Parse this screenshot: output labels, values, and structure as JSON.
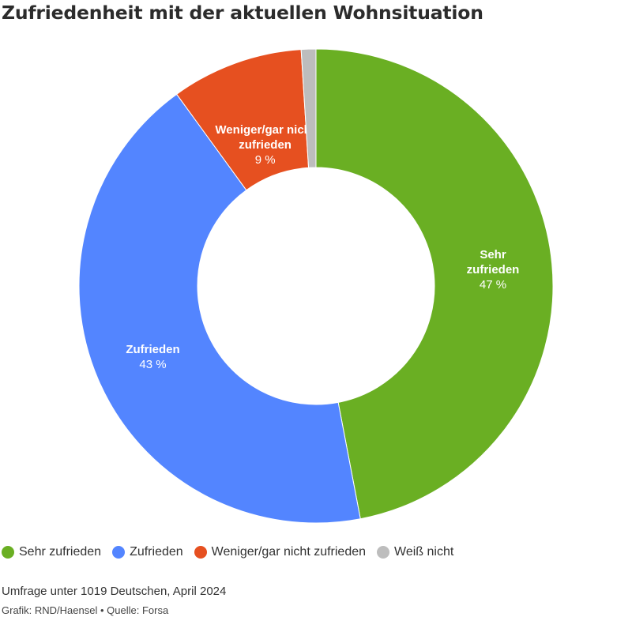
{
  "title": "Zufriedenheit mit der aktuellen Wohnsituation",
  "chart_data": {
    "type": "pie",
    "title": "Zufriedenheit mit der aktuellen Wohnsituation",
    "categories": [
      "Sehr zufrieden",
      "Zufrieden",
      "Weniger/gar nicht zufrieden",
      "Weiß nicht"
    ],
    "values": [
      47,
      43,
      9,
      1
    ],
    "slice_labels": [
      {
        "lines": [
          "Sehr",
          "zufrieden"
        ],
        "value_text": "47 %"
      },
      {
        "lines": [
          "Zufrieden"
        ],
        "value_text": "43 %"
      },
      {
        "lines": [
          "Weniger/gar nicht",
          "zufrieden"
        ],
        "value_text": "9 %"
      },
      {
        "lines": [],
        "value_text": ""
      }
    ],
    "colors": [
      "#6aaf23",
      "#5385ff",
      "#e65020",
      "#bdbdbd"
    ],
    "donut": true,
    "legend_position": "bottom-left"
  },
  "legend": [
    {
      "label": "Sehr zufrieden",
      "color": "#6aaf23"
    },
    {
      "label": "Zufrieden",
      "color": "#5385ff"
    },
    {
      "label": "Weniger/gar nicht zufrieden",
      "color": "#e65020"
    },
    {
      "label": "Weiß nicht",
      "color": "#bdbdbd"
    }
  ],
  "note": "Umfrage unter 1019 Deutschen, April 2024",
  "credit": "Grafik: RND/Haensel • Quelle: Forsa"
}
